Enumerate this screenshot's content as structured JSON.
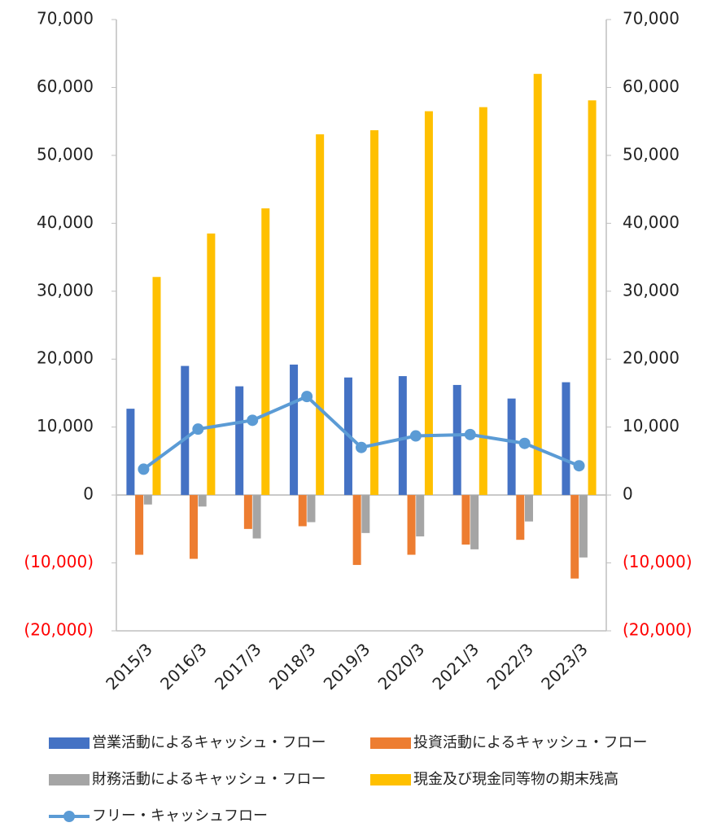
{
  "chart_data": {
    "type": "bar",
    "categories": [
      "2015/3",
      "2016/3",
      "2017/3",
      "2018/3",
      "2019/3",
      "2020/3",
      "2021/3",
      "2022/3",
      "2023/3"
    ],
    "series": [
      {
        "name": "営業活動によるキャッシュ・フロー",
        "type": "bar",
        "color": "#4472c4",
        "values": [
          12700,
          19000,
          16000,
          19200,
          17300,
          17500,
          16200,
          14200,
          16600
        ]
      },
      {
        "name": "投資活動によるキャッシュ・フロー",
        "type": "bar",
        "color": "#ed7d31",
        "values": [
          -8800,
          -9400,
          -5000,
          -4600,
          -10300,
          -8800,
          -7300,
          -6600,
          -12300
        ]
      },
      {
        "name": "財務活動によるキャッシュ・フロー",
        "type": "bar",
        "color": "#a5a5a5",
        "values": [
          -1400,
          -1700,
          -6400,
          -4000,
          -5600,
          -6100,
          -8000,
          -3900,
          -9200
        ]
      },
      {
        "name": "現金及び現金同等物の期末残高",
        "type": "bar",
        "color": "#ffc000",
        "values": [
          32100,
          38500,
          42200,
          53100,
          53700,
          56500,
          57100,
          62000,
          58100
        ]
      },
      {
        "name": "フリー・キャッシュフロー",
        "type": "line",
        "color": "#5b9bd5",
        "values": [
          3800,
          9700,
          11000,
          14500,
          7000,
          8700,
          8900,
          7600,
          4300
        ]
      }
    ],
    "ylim": [
      -20000,
      70000
    ],
    "yticks": [
      {
        "value": -20000,
        "label": "(20,000)"
      },
      {
        "value": -10000,
        "label": "(10,000)"
      },
      0,
      {
        "value": 10000,
        "label": "10,000"
      },
      {
        "value": 20000,
        "label": "20,000"
      },
      {
        "value": 30000,
        "label": "30,000"
      },
      {
        "value": 40000,
        "label": "40,000"
      },
      {
        "value": 50000,
        "label": "50,000"
      },
      {
        "value": 60000,
        "label": "60,000"
      },
      {
        "value": 70000,
        "label": "70,000"
      }
    ],
    "y2lim": [
      -20000,
      70000
    ],
    "y2ticks": [
      {
        "value": -20000,
        "label": "(20,000)"
      },
      {
        "value": -10000,
        "label": "(10,000)"
      },
      0,
      {
        "value": 10000,
        "label": "10,000"
      },
      {
        "value": 20000,
        "label": "20,000"
      },
      {
        "value": 30000,
        "label": "30,000"
      },
      {
        "value": 40000,
        "label": "40,000"
      },
      {
        "value": 50000,
        "label": "50,000"
      },
      {
        "value": 60000,
        "label": "60,000"
      },
      {
        "value": 70000,
        "label": "70,000"
      }
    ],
    "negative_tick_color": "#ff0000",
    "grid": false
  }
}
